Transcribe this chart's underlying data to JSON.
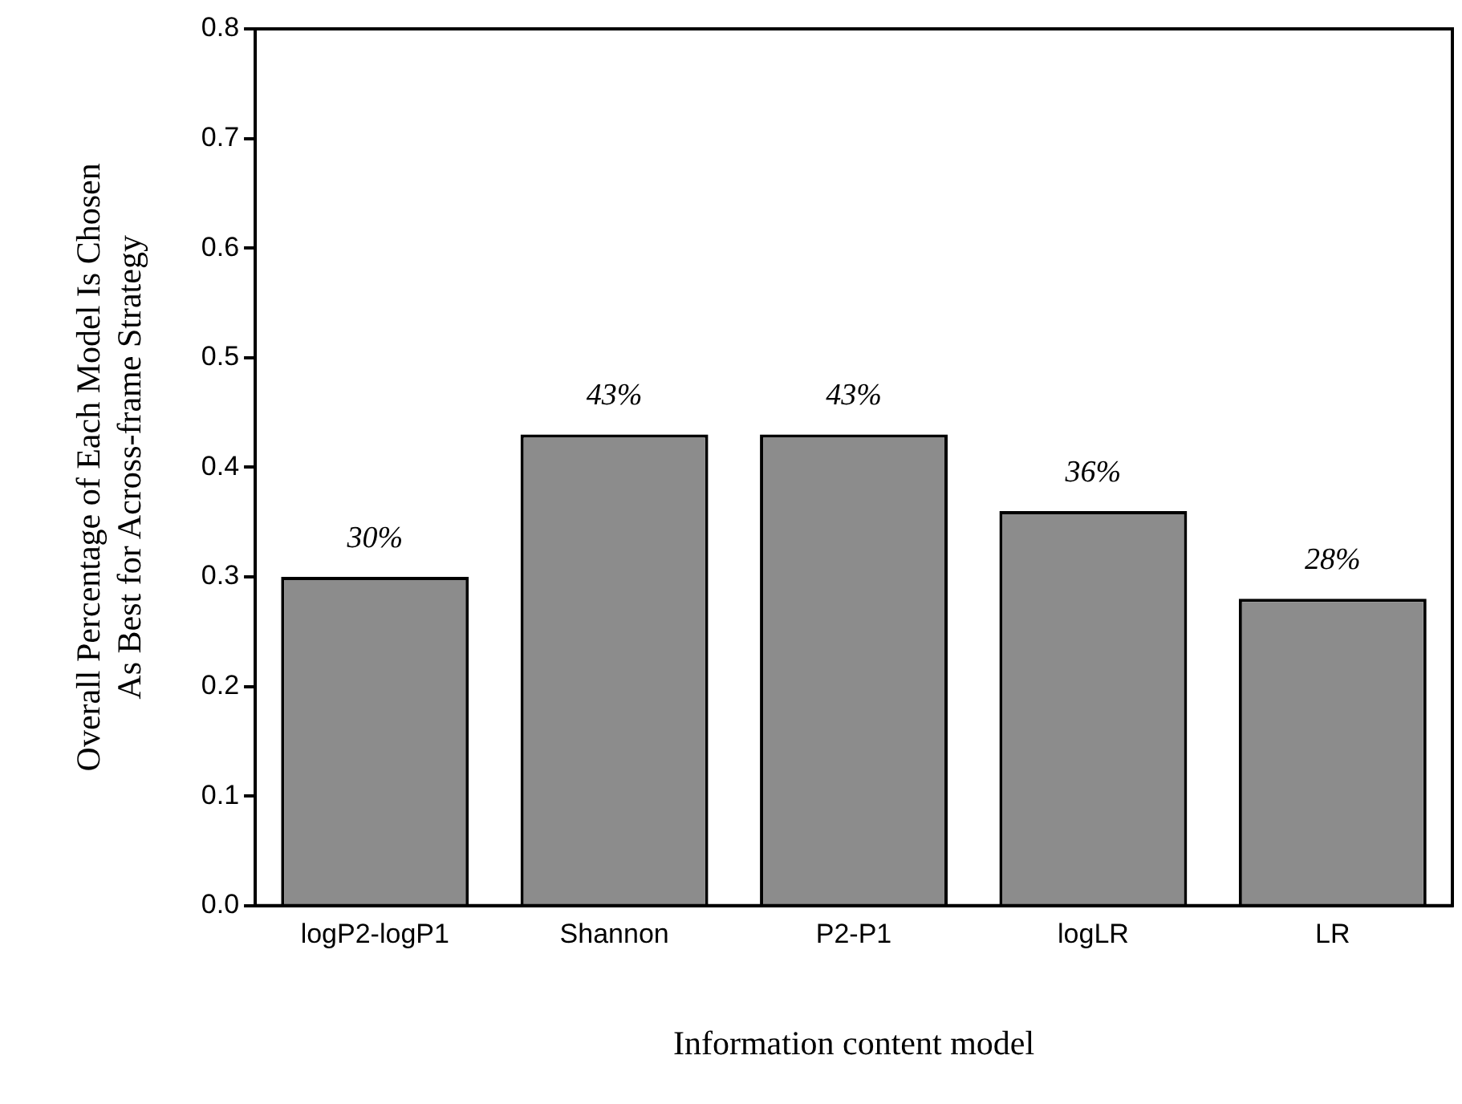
{
  "chart_data": {
    "type": "bar",
    "xlabel": "Information content model",
    "ylabel": "Overall Percentage of Each Model Is Chosen\nAs Best for Across-frame Strategy",
    "categories": [
      "logP2-logP1",
      "Shannon",
      "P2-P1",
      "logLR",
      "LR"
    ],
    "values": [
      0.3,
      0.43,
      0.43,
      0.36,
      0.28
    ],
    "value_labels": [
      "30%",
      "43%",
      "43%",
      "36%",
      "28%"
    ],
    "color": "#8c8c8c",
    "ylim": [
      0,
      0.8
    ],
    "yticks": [
      {
        "value": 0,
        "label": "0.0"
      },
      0.1,
      0.2,
      0.3,
      0.4,
      0.5,
      0.6,
      0.7,
      0.8
    ],
    "grid": false,
    "legend": false
  }
}
